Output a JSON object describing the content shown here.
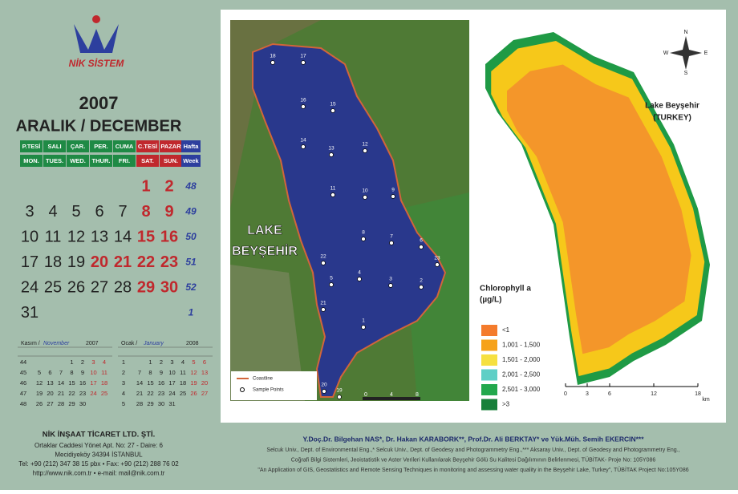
{
  "brand": "NİK SİSTEM",
  "calendar": {
    "year": "2007",
    "month": "ARALIK / DECEMBER",
    "weekdays_tr": [
      "P.TESİ",
      "SALI",
      "ÇAR.",
      "PER.",
      "CUMA",
      "C.TESİ",
      "PAZAR"
    ],
    "weekdays_en": [
      "MON.",
      "TUES.",
      "WED.",
      "THUR.",
      "FRI.",
      "SAT.",
      "SUN."
    ],
    "week_header_tr": "Hafta",
    "week_header_en": "Week",
    "holidays": [
      20,
      21
    ],
    "weeks": [
      {
        "week": 48,
        "days": [
          null,
          null,
          null,
          null,
          null,
          1,
          2
        ]
      },
      {
        "week": 49,
        "days": [
          3,
          4,
          5,
          6,
          7,
          8,
          9
        ]
      },
      {
        "week": 50,
        "days": [
          10,
          11,
          12,
          13,
          14,
          15,
          16
        ]
      },
      {
        "week": 51,
        "days": [
          17,
          18,
          19,
          20,
          21,
          22,
          23
        ]
      },
      {
        "week": 52,
        "days": [
          24,
          25,
          26,
          27,
          28,
          29,
          30
        ]
      },
      {
        "week": 1,
        "days": [
          31,
          null,
          null,
          null,
          null,
          null,
          null
        ]
      }
    ]
  },
  "mini_calendars": [
    {
      "month_tr": "Kasım /",
      "month_en": "November",
      "year": "2007",
      "weeks": [
        {
          "week": 44,
          "days": [
            null,
            null,
            null,
            1,
            2,
            3,
            4
          ]
        },
        {
          "week": 45,
          "days": [
            5,
            6,
            7,
            8,
            9,
            10,
            11
          ]
        },
        {
          "week": 46,
          "days": [
            12,
            13,
            14,
            15,
            16,
            17,
            18
          ]
        },
        {
          "week": 47,
          "days": [
            19,
            20,
            21,
            22,
            23,
            24,
            25
          ]
        },
        {
          "week": 48,
          "days": [
            26,
            27,
            28,
            29,
            30,
            null,
            null
          ]
        }
      ]
    },
    {
      "month_tr": "Ocak /",
      "month_en": "January",
      "year": "2008",
      "weeks": [
        {
          "week": 1,
          "days": [
            null,
            1,
            2,
            3,
            4,
            5,
            6
          ]
        },
        {
          "week": 2,
          "days": [
            7,
            8,
            9,
            10,
            11,
            12,
            13
          ]
        },
        {
          "week": 3,
          "days": [
            14,
            15,
            16,
            17,
            18,
            19,
            20
          ]
        },
        {
          "week": 4,
          "days": [
            21,
            22,
            23,
            24,
            25,
            26,
            27
          ]
        },
        {
          "week": 5,
          "days": [
            28,
            29,
            30,
            31,
            null,
            null,
            null
          ]
        }
      ]
    }
  ],
  "company": {
    "name": "NİK İNŞAAT TİCARET LTD. ŞTİ.",
    "lines": [
      "Ortaklar Caddesi Yönet Apt. No: 27 - Daire: 6",
      "Mecidiyeköy 34394 İSTANBUL",
      "Tel: +90 (212) 347 38 15 pbx • Fax: +90 (212) 288 76 02",
      "http://www.nik.com.tr • e-mail: mail@nik.com.tr"
    ]
  },
  "map_left": {
    "lake_label_lines": [
      "LAKE",
      "BEYŞEHİR"
    ],
    "sample_points": [
      "18",
      "17",
      "16",
      "15",
      "14",
      "13",
      "12",
      "11",
      "10",
      "9",
      "8",
      "7",
      "6",
      "23",
      "22",
      "5",
      "4",
      "3",
      "2",
      "21",
      "1",
      "20",
      "19"
    ],
    "legend": [
      "Coastline",
      "Sample Points"
    ],
    "scale": [
      "0",
      "4",
      "8"
    ]
  },
  "map_right": {
    "title_lines": [
      "Lake Beyşehir",
      "(TURKEY)"
    ],
    "compass": [
      "N",
      "S",
      "E",
      "W"
    ],
    "legend_title_lines": [
      "Chlorophyll a",
      "(µg/L)"
    ],
    "legend": [
      {
        "label": "<1",
        "color": "#f47b2c"
      },
      {
        "label": "1,001 - 1,500",
        "color": "#f6a21a"
      },
      {
        "label": "1,501 - 2,000",
        "color": "#f6e040"
      },
      {
        "label": "2,001 - 2,500",
        "color": "#5fcfc6"
      },
      {
        "label": "2,501 - 3,000",
        "color": "#22a84c"
      },
      {
        "label": ">3",
        "color": "#17803a"
      }
    ],
    "scale": [
      "0",
      "3",
      "6",
      "12",
      "18"
    ],
    "scale_unit": "km"
  },
  "credits": {
    "authors": "Y.Doç.Dr. Bilgehan NAS*, Dr. Hakan KARABORK**, Prof.Dr. Ali BERKTAY* ve Yük.Müh. Semih EKERCIN***",
    "lines": [
      "Selcuk Univ., Dept. of Environmental Eng.,* Selcuk Univ., Dept. of Geodesy and Photogrammetry Eng.,*** Aksaray Univ., Dept. of Geodesy and Photogrammetry Eng.,",
      "Coğrafi Bilgi Sistemleri, Jeoistatistik ve Aster Verileri Kullanılarak Beyşehir Gölü Su Kalitesi Dağılımının Belirlenmesi, TÜBİTAK- Proje No: 105Y086",
      "\"An Application of GIS, Geostatistics and Remote Sensing Techniques in monitoring and assessing water quality in the Beyşehir Lake, Turkey\", TÜBİTAK Project No:105Y086"
    ]
  }
}
